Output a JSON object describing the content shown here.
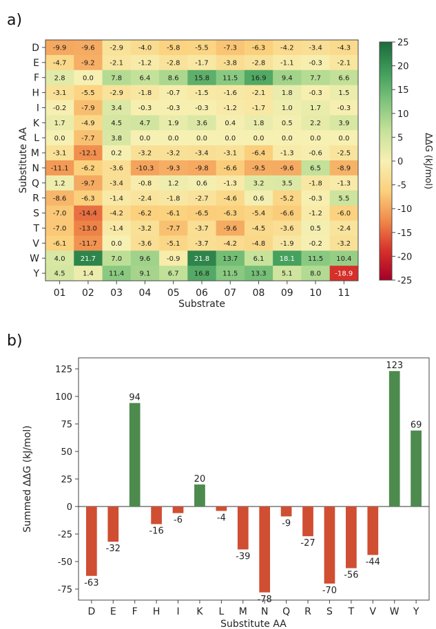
{
  "panels": {
    "a_label": "a)",
    "b_label": "b)"
  },
  "chart_data": [
    {
      "type": "heatmap",
      "xlabel": "Substrate",
      "ylabel": "Substitute AA",
      "x_categories": [
        "01",
        "02",
        "03",
        "04",
        "05",
        "06",
        "07",
        "08",
        "09",
        "10",
        "11"
      ],
      "y_categories": [
        "D",
        "E",
        "F",
        "H",
        "I",
        "K",
        "L",
        "M",
        "N",
        "Q",
        "R",
        "S",
        "T",
        "V",
        "W",
        "Y"
      ],
      "values": [
        [
          -9.9,
          -9.6,
          -2.9,
          -4.0,
          -5.8,
          -5.5,
          -7.3,
          -6.3,
          -4.2,
          -3.4,
          -4.3
        ],
        [
          -4.7,
          -9.2,
          -2.1,
          -1.2,
          -2.8,
          -1.7,
          -3.8,
          -2.8,
          -1.1,
          -0.3,
          -2.1
        ],
        [
          2.8,
          0.0,
          7.8,
          6.4,
          8.6,
          15.8,
          11.5,
          16.9,
          9.4,
          7.7,
          6.6
        ],
        [
          -3.1,
          -5.5,
          -2.9,
          -1.8,
          -0.7,
          -1.5,
          -1.6,
          -2.1,
          1.8,
          -0.3,
          1.5
        ],
        [
          -0.2,
          -7.9,
          3.4,
          -0.3,
          -0.3,
          -0.3,
          -1.2,
          -1.7,
          1.0,
          1.7,
          -0.3
        ],
        [
          1.7,
          -4.9,
          4.5,
          4.7,
          1.9,
          3.6,
          0.4,
          1.8,
          0.5,
          2.2,
          3.9
        ],
        [
          0.0,
          -7.7,
          3.8,
          0.0,
          0.0,
          0.0,
          0.0,
          0.0,
          0.0,
          0.0,
          0.0
        ],
        [
          -3.1,
          -12.1,
          0.2,
          -3.2,
          -3.2,
          -3.4,
          -3.1,
          -6.4,
          -1.3,
          -0.6,
          -2.5
        ],
        [
          -11.1,
          -6.2,
          -3.6,
          -10.3,
          -9.3,
          -9.8,
          -6.6,
          -9.5,
          -9.6,
          6.5,
          -8.9
        ],
        [
          1.2,
          -9.7,
          -3.4,
          -0.8,
          1.2,
          0.6,
          -1.3,
          3.2,
          3.5,
          -1.8,
          -1.3
        ],
        [
          -8.6,
          -6.3,
          -1.4,
          -2.4,
          -1.8,
          -2.7,
          -4.6,
          0.6,
          -5.2,
          -0.3,
          5.5
        ],
        [
          -7.0,
          -14.4,
          -4.2,
          -6.2,
          -6.1,
          -6.5,
          -6.3,
          -5.4,
          -6.6,
          -1.2,
          -6.0
        ],
        [
          -7.0,
          -13.0,
          -1.4,
          -3.2,
          -7.7,
          -3.7,
          -9.6,
          -4.5,
          -3.6,
          0.5,
          -2.4
        ],
        [
          -6.1,
          -11.7,
          0.0,
          -3.6,
          -5.1,
          -3.7,
          -4.2,
          -4.8,
          -1.9,
          -0.2,
          -3.2
        ],
        [
          4.0,
          21.7,
          7.0,
          9.6,
          -0.9,
          21.8,
          13.7,
          6.1,
          18.1,
          11.5,
          10.4
        ],
        [
          4.5,
          1.4,
          11.4,
          9.1,
          6.7,
          16.8,
          11.5,
          13.3,
          5.1,
          8.0,
          -18.9
        ]
      ],
      "colorbar": {
        "label": "ΔΔG (kJ/mol)",
        "range": [
          -25,
          25
        ],
        "ticks": [
          -25,
          -20,
          -15,
          -10,
          -5,
          0,
          5,
          10,
          15,
          20,
          25
        ],
        "colormap": [
          "#a50026",
          "#d7312a",
          "#f08a4b",
          "#fbd17d",
          "#f7f0b3",
          "#c6e29a",
          "#7fc47c",
          "#3f9d5a",
          "#1c6a3c"
        ]
      }
    },
    {
      "type": "bar",
      "xlabel": "Substitute AA",
      "ylabel": "Summed ΔΔG (kJ/mol)",
      "categories": [
        "D",
        "E",
        "F",
        "H",
        "I",
        "K",
        "L",
        "M",
        "N",
        "Q",
        "R",
        "S",
        "T",
        "V",
        "W",
        "Y"
      ],
      "values": [
        -63,
        -32,
        94,
        -16,
        -6,
        20,
        -4,
        -39,
        -78,
        -9,
        -27,
        -70,
        -56,
        -44,
        123,
        69
      ],
      "value_labels": [
        "-63",
        "-32",
        "94",
        "-16",
        "-6",
        "20",
        "-4",
        "-39",
        "-78",
        "-9",
        "-27",
        "-70",
        "-56",
        "-44",
        "123",
        "69"
      ],
      "ylim": [
        -85,
        135
      ],
      "yticks": [
        -75,
        -50,
        -25,
        0,
        25,
        50,
        75,
        100,
        125
      ],
      "positive_color": "#4d8a4d",
      "negative_color": "#d04e32"
    }
  ]
}
